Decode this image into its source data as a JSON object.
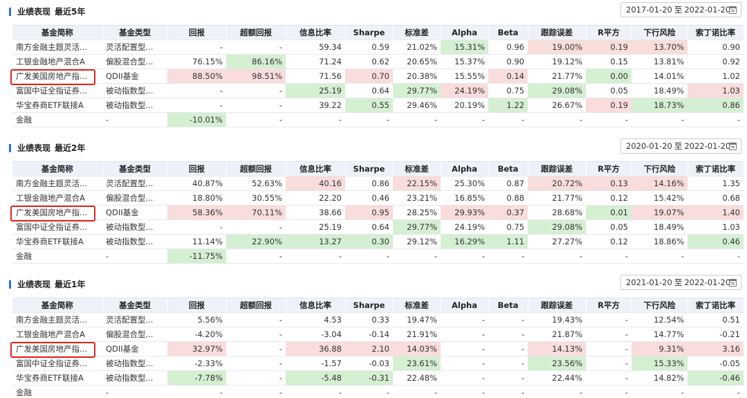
{
  "columns": [
    "基金简称",
    "基金类型",
    "回报",
    "超额回报",
    "信息比率",
    "Sharpe",
    "标准差",
    "Alpha",
    "Beta",
    "跟踪误差",
    "R平方",
    "下行风险",
    "索丁诺比率"
  ],
  "date_separator": "至",
  "sections": [
    {
      "title": "业绩表现",
      "period": "最近5年",
      "date_from": "2017-01-20",
      "date_to": "2022-01-20",
      "rows": [
        {
          "cells": [
            "南方金融主题灵活...",
            "灵活配置型...",
            "-",
            "-",
            "59.34",
            "0.59",
            "21.02%",
            "15.31%",
            "0.96",
            "19.00%",
            "0.19",
            "13.70%",
            "0.90"
          ],
          "colors": [
            "",
            "",
            "",
            "",
            "",
            "",
            "",
            "g",
            "",
            "r",
            "r",
            "r",
            ""
          ]
        },
        {
          "cells": [
            "工银金融地产混合A",
            "偏股混合型...",
            "76.15%",
            "86.16%",
            "71.24",
            "0.62",
            "20.65%",
            "15.37%",
            "0.90",
            "19.12%",
            "0.15",
            "13.81%",
            "0.92"
          ],
          "colors": [
            "",
            "",
            "",
            "g",
            "",
            "",
            "",
            "",
            "",
            "",
            "",
            "",
            ""
          ]
        },
        {
          "cells": [
            "广发美国房地产指...",
            "QDII基金",
            "88.50%",
            "98.51%",
            "71.56",
            "0.70",
            "20.38%",
            "15.55%",
            "0.14",
            "21.77%",
            "0.00",
            "14.01%",
            "1.02"
          ],
          "colors": [
            "",
            "",
            "r",
            "r",
            "",
            "r",
            "",
            "",
            "r",
            "",
            "g",
            "",
            ""
          ]
        },
        {
          "cells": [
            "富国中证全指证券...",
            "被动指数型...",
            "-",
            "-",
            "25.19",
            "0.64",
            "29.77%",
            "24.19%",
            "0.75",
            "29.08%",
            "0.05",
            "18.49%",
            "1.03"
          ],
          "colors": [
            "",
            "",
            "",
            "",
            "g",
            "",
            "g",
            "r",
            "",
            "g",
            "",
            "",
            "r"
          ]
        },
        {
          "cells": [
            "华宝券商ETF联接A",
            "被动指数型...",
            "-",
            "-",
            "39.22",
            "0.55",
            "29.46%",
            "20.19%",
            "1.22",
            "26.67%",
            "0.19",
            "18.73%",
            "0.86"
          ],
          "colors": [
            "",
            "",
            "",
            "",
            "",
            "g",
            "",
            "",
            "g",
            "",
            "r",
            "g",
            "g"
          ]
        },
        {
          "cells": [
            "金融",
            "-",
            "-10.01%",
            "-",
            "-",
            "-",
            "-",
            "-",
            "-",
            "-",
            "-",
            "-",
            "-"
          ],
          "colors": [
            "",
            "",
            "g",
            "",
            "",
            "",
            "",
            "",
            "",
            "",
            "",
            "",
            ""
          ]
        }
      ]
    },
    {
      "title": "业绩表现",
      "period": "最近2年",
      "date_from": "2020-01-20",
      "date_to": "2022-01-20",
      "rows": [
        {
          "cells": [
            "南方金融主题灵活...",
            "灵活配置型...",
            "40.87%",
            "52.63%",
            "40.16",
            "0.86",
            "22.15%",
            "25.30%",
            "0.87",
            "20.72%",
            "0.13",
            "14.16%",
            "1.35"
          ],
          "colors": [
            "",
            "",
            "",
            "",
            "r",
            "",
            "r",
            "",
            "",
            "r",
            "r",
            "r",
            ""
          ]
        },
        {
          "cells": [
            "工银金融地产混合A",
            "偏股混合型...",
            "18.80%",
            "30.55%",
            "22.20",
            "0.46",
            "23.21%",
            "16.85%",
            "0.88",
            "21.77%",
            "0.12",
            "15.42%",
            "0.68"
          ],
          "colors": [
            "",
            "",
            "",
            "",
            "",
            "",
            "",
            "",
            "",
            "",
            "",
            "",
            ""
          ]
        },
        {
          "cells": [
            "广发美国房地产指...",
            "QDII基金",
            "58.36%",
            "70.11%",
            "38.66",
            "0.95",
            "28.25%",
            "29.93%",
            "0.37",
            "28.68%",
            "0.01",
            "19.07%",
            "1.40"
          ],
          "colors": [
            "",
            "",
            "r",
            "r",
            "",
            "r",
            "",
            "r",
            "r",
            "",
            "g",
            "r",
            "r"
          ]
        },
        {
          "cells": [
            "富国中证全指证券...",
            "被动指数型...",
            "-",
            "-",
            "25.19",
            "0.64",
            "29.77%",
            "24.19%",
            "0.75",
            "29.08%",
            "0.05",
            "18.49%",
            "1.03"
          ],
          "colors": [
            "",
            "",
            "",
            "",
            "",
            "",
            "g",
            "",
            "",
            "g",
            "",
            "",
            ""
          ]
        },
        {
          "cells": [
            "华宝券商ETF联接A",
            "被动指数型...",
            "11.14%",
            "22.90%",
            "13.27",
            "0.30",
            "29.12%",
            "16.29%",
            "1.11",
            "27.27%",
            "0.12",
            "18.86%",
            "0.46"
          ],
          "colors": [
            "",
            "",
            "",
            "g",
            "g",
            "g",
            "",
            "g",
            "g",
            "",
            "",
            "",
            "g"
          ]
        },
        {
          "cells": [
            "金融",
            "-",
            "-11.75%",
            "-",
            "-",
            "-",
            "-",
            "-",
            "-",
            "-",
            "-",
            "-",
            "-"
          ],
          "colors": [
            "",
            "",
            "g",
            "",
            "",
            "",
            "",
            "",
            "",
            "",
            "",
            "",
            ""
          ]
        }
      ]
    },
    {
      "title": "业绩表现",
      "period": "最近1年",
      "date_from": "2021-01-20",
      "date_to": "2022-01-20",
      "rows": [
        {
          "cells": [
            "南方金融主题灵活...",
            "灵活配置型...",
            "5.56%",
            "-",
            "4.53",
            "0.33",
            "19.47%",
            "-",
            "-",
            "19.43%",
            "-",
            "12.54%",
            "0.51"
          ],
          "colors": [
            "",
            "",
            "",
            "",
            "",
            "",
            "",
            "",
            "",
            "",
            "",
            "",
            ""
          ]
        },
        {
          "cells": [
            "工银金融地产混合A",
            "偏股混合型...",
            "-4.20%",
            "-",
            "-3.04",
            "-0.14",
            "21.91%",
            "-",
            "-",
            "21.87%",
            "-",
            "14.77%",
            "-0.21"
          ],
          "colors": [
            "",
            "",
            "",
            "",
            "",
            "",
            "",
            "",
            "",
            "",
            "",
            "",
            ""
          ]
        },
        {
          "cells": [
            "广发美国房地产指...",
            "QDII基金",
            "32.97%",
            "-",
            "36.88",
            "2.10",
            "14.03%",
            "-",
            "-",
            "14.13%",
            "-",
            "9.31%",
            "3.16"
          ],
          "colors": [
            "",
            "",
            "r",
            "",
            "r",
            "r",
            "r",
            "",
            "",
            "r",
            "",
            "r",
            "r"
          ]
        },
        {
          "cells": [
            "富国中证全指证券...",
            "被动指数型...",
            "-2.33%",
            "-",
            "-1.57",
            "-0.03",
            "23.61%",
            "-",
            "-",
            "23.56%",
            "-",
            "15.33%",
            "-0.05"
          ],
          "colors": [
            "",
            "",
            "",
            "",
            "",
            "",
            "g",
            "",
            "",
            "g",
            "",
            "g",
            ""
          ]
        },
        {
          "cells": [
            "华宝券商ETF联接A",
            "被动指数型...",
            "-7.78%",
            "-",
            "-5.48",
            "-0.31",
            "22.48%",
            "-",
            "-",
            "22.44%",
            "-",
            "14.82%",
            "-0.46"
          ],
          "colors": [
            "",
            "",
            "g",
            "",
            "g",
            "g",
            "",
            "",
            "",
            "",
            "",
            "",
            "g"
          ]
        },
        {
          "cells": [
            "金融",
            "-",
            "-",
            "-",
            "-",
            "-",
            "-",
            "-",
            "-",
            "-",
            "-",
            "-",
            "-"
          ],
          "colors": [
            "",
            "",
            "",
            "",
            "",
            "",
            "",
            "",
            "",
            "",
            "",
            "",
            ""
          ]
        }
      ]
    }
  ]
}
